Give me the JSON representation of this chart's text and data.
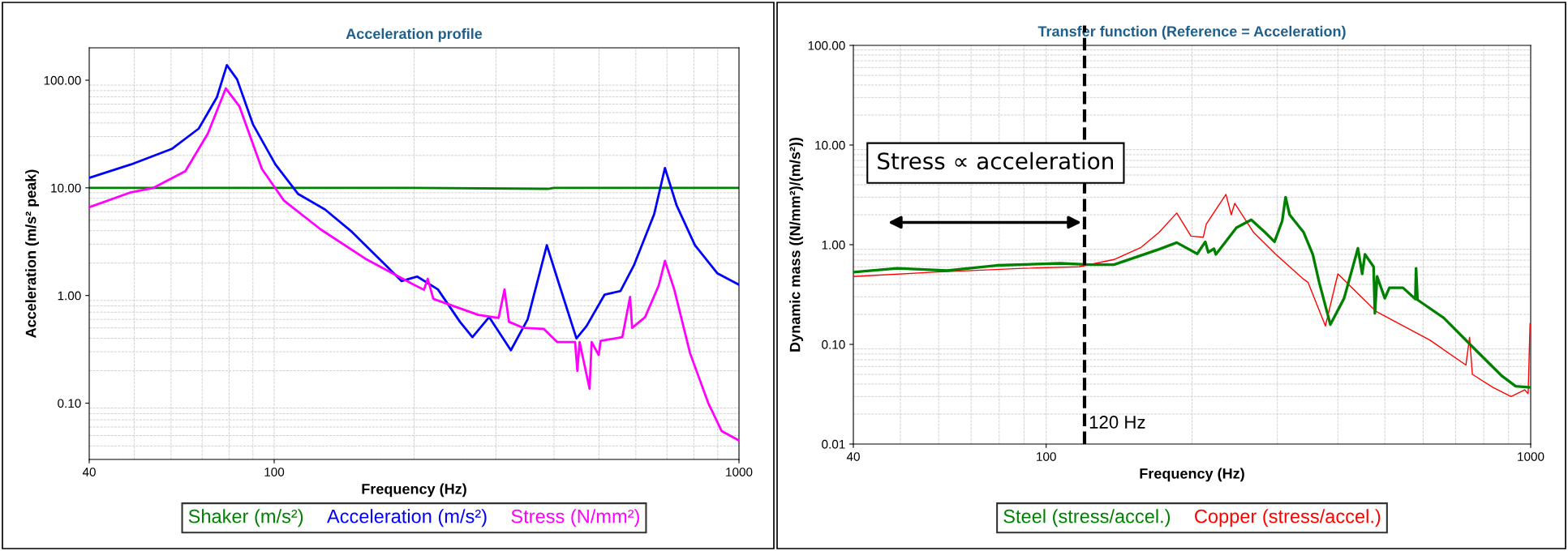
{
  "chart_data": [
    {
      "type": "line",
      "title": "Acceleration profile",
      "xlabel": "Frequency (Hz)",
      "ylabel": "Acceleration (m/s² peak)",
      "log": "xy",
      "grid": true,
      "legend": "bottom",
      "xlim": [
        40,
        1000
      ],
      "xticks": [
        40,
        100,
        1000
      ],
      "ylim": [
        0.03,
        200
      ],
      "yticks": [
        {
          "value": 0.1,
          "label": "0.10"
        },
        {
          "value": 1,
          "label": "1.00"
        },
        {
          "value": 10,
          "label": "10.00"
        },
        {
          "value": 100,
          "label": "100.00"
        }
      ],
      "series": [
        {
          "name": "Shaker (m/s²)",
          "color": "#008000",
          "x": [
            40,
            100,
            200,
            388,
            400,
            1000
          ],
          "values": [
            10,
            10,
            10,
            9.8,
            10,
            10
          ]
        },
        {
          "name": "Acceleration (m/s²)",
          "color": "#0000ff",
          "x": [
            40,
            49.2,
            60.2,
            68.8,
            75.3,
            79.1,
            83.2,
            90,
            100.6,
            112.5,
            128.6,
            147,
            176,
            188,
            203,
            225,
            251,
            267,
            290,
            323,
            351,
            386,
            411,
            447,
            470,
            514,
            556,
            594,
            657,
            693,
            734,
            804,
            898,
            1000
          ],
          "values": [
            12.4,
            16.5,
            23,
            35.5,
            69.5,
            138,
            102,
            39,
            16.5,
            8.8,
            6.3,
            3.9,
            1.81,
            1.36,
            1.5,
            1.14,
            0.57,
            0.41,
            0.63,
            0.31,
            0.6,
            2.93,
            1.24,
            0.4,
            0.52,
            1.02,
            1.1,
            1.9,
            5.7,
            15.3,
            6.9,
            2.93,
            1.61,
            1.26
          ]
        },
        {
          "name": "Stress (N/mm²)",
          "color": "#ff00ff",
          "x": [
            40,
            49.2,
            55,
            64.4,
            72,
            78.7,
            84.2,
            94.1,
            105,
            126,
            157,
            197,
            210,
            214,
            220,
            275,
            304,
            313,
            320,
            344,
            380,
            406,
            444,
            449,
            454,
            477,
            482,
            499,
            504,
            561,
            583,
            589,
            628,
            672,
            693,
            726,
            785,
            859,
            918,
            1000
          ],
          "values": [
            6.6,
            9.1,
            10,
            14.3,
            32,
            84,
            57,
            15,
            7.6,
            4.1,
            2.2,
            1.3,
            1.13,
            1.43,
            0.93,
            0.66,
            0.62,
            1.14,
            0.57,
            0.5,
            0.49,
            0.37,
            0.37,
            0.2,
            0.37,
            0.136,
            0.37,
            0.28,
            0.38,
            0.41,
            0.97,
            0.5,
            0.63,
            1.24,
            2.1,
            1.13,
            0.29,
            0.1,
            0.055,
            0.045
          ]
        }
      ]
    },
    {
      "type": "line",
      "title": "Transfer function (Reference = Acceleration)",
      "xlabel": "Frequency (Hz)",
      "ylabel": "Dynamic mass ((N/mm²)/(m/s²))",
      "log": "xy",
      "grid": true,
      "legend": "bottom",
      "xlim": [
        40,
        1000
      ],
      "xticks": [
        40,
        100,
        1000
      ],
      "ylim": [
        0.01,
        100
      ],
      "yticks": [
        {
          "value": 0.01,
          "label": "0.01"
        },
        {
          "value": 0.1,
          "label": "0.10"
        },
        {
          "value": 1,
          "label": "1.00"
        },
        {
          "value": 10,
          "label": "10.00"
        },
        {
          "value": 100,
          "label": "100.00"
        }
      ],
      "ref_lines": [
        {
          "axis": "x",
          "value": 120,
          "label": "120 Hz",
          "color": "#000000",
          "line_style": "dashed"
        }
      ],
      "annotations": [
        "Stress ∝ acceleration"
      ],
      "series": [
        {
          "name": "Steel (stress/accel.)",
          "color": "#008000",
          "x": [
            40,
            49.3,
            62.5,
            79,
            107,
            123,
            138,
            171,
            186,
            205,
            213,
            216,
            222,
            224,
            247,
            265,
            283,
            296,
            307,
            312,
            318,
            340,
            355,
            366,
            386,
            412,
            440,
            449,
            455,
            474,
            477,
            482,
            500,
            511,
            545,
            578,
            580,
            584,
            661,
            768,
            873,
            931,
            1000
          ],
          "values": [
            0.53,
            0.58,
            0.55,
            0.62,
            0.65,
            0.63,
            0.63,
            0.9,
            1.05,
            0.81,
            1.07,
            0.84,
            0.91,
            0.8,
            1.48,
            1.78,
            1.33,
            1.07,
            1.73,
            3.0,
            2.0,
            1.33,
            0.8,
            0.42,
            0.158,
            0.29,
            0.92,
            0.51,
            0.8,
            0.6,
            0.205,
            0.48,
            0.29,
            0.37,
            0.37,
            0.285,
            0.58,
            0.28,
            0.185,
            0.089,
            0.048,
            0.038,
            0.037
          ]
        },
        {
          "name": "Copper (stress/accel.)",
          "color": "#ff0000",
          "x": [
            40,
            58.6,
            90,
            117,
            138,
            157,
            171,
            186,
            199,
            211,
            214,
            235,
            241,
            245,
            268,
            298,
            340,
            347,
            377,
            400,
            479,
            620,
            735,
            748,
            758,
            836,
            911,
            972,
            988,
            997
          ],
          "values": [
            0.48,
            0.53,
            0.58,
            0.6,
            0.71,
            0.94,
            1.33,
            2.08,
            1.22,
            1.19,
            1.61,
            3.2,
            2.0,
            2.6,
            1.33,
            0.8,
            0.45,
            0.42,
            0.153,
            0.51,
            0.215,
            0.11,
            0.062,
            0.118,
            0.05,
            0.037,
            0.03,
            0.035,
            0.032,
            0.161
          ]
        }
      ]
    }
  ]
}
